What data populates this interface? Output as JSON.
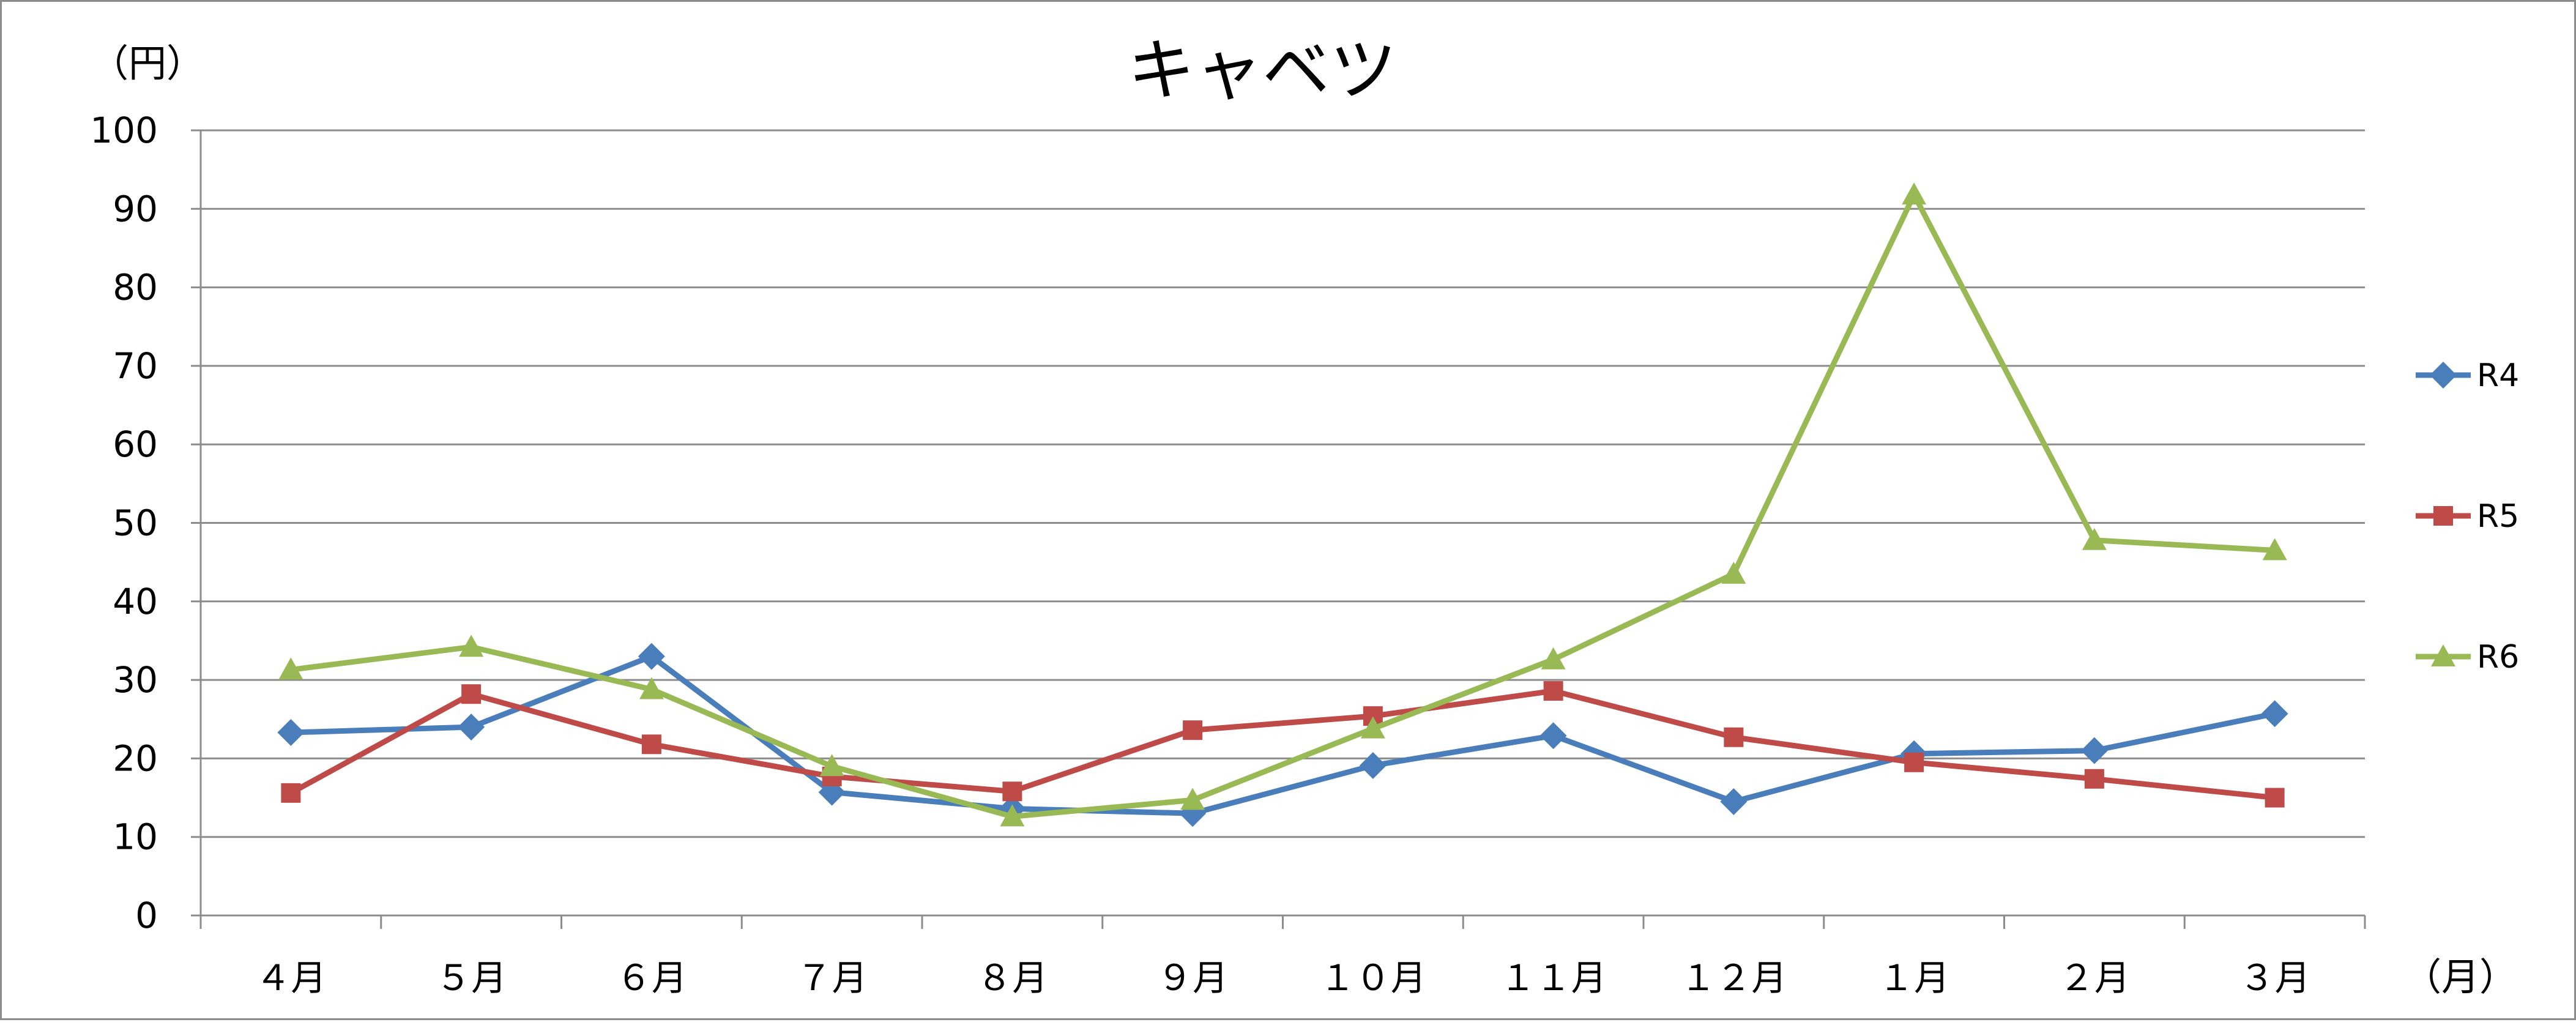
{
  "chart_data": {
    "type": "line",
    "title": "キャベツ",
    "ylabel": "（円）",
    "xlabel": "（月）",
    "ylim": [
      0,
      100
    ],
    "yticks": [
      "0",
      "10",
      "20",
      "30",
      "40",
      "50",
      "60",
      "70",
      "80",
      "90",
      "100"
    ],
    "categories": [
      "４月",
      "５月",
      "６月",
      "７月",
      "８月",
      "９月",
      "１０月",
      "１１月",
      "１２月",
      "１月",
      "２月",
      "３月"
    ],
    "grid": true,
    "legend_position": "right",
    "series": [
      {
        "name": "R4",
        "color": "#4a7ebb",
        "marker": "diamond",
        "values": [
          23.3,
          24.0,
          33.0,
          15.7,
          13.6,
          13.0,
          19.1,
          22.9,
          14.5,
          20.6,
          21.0,
          25.7
        ]
      },
      {
        "name": "R5",
        "color": "#be4b48",
        "marker": "square",
        "values": [
          15.6,
          28.2,
          21.8,
          17.7,
          15.8,
          23.6,
          25.4,
          28.6,
          22.7,
          19.5,
          17.4,
          15.0
        ]
      },
      {
        "name": "R6",
        "color": "#98b954",
        "marker": "triangle",
        "values": [
          31.3,
          34.2,
          28.8,
          19.0,
          12.6,
          14.7,
          23.8,
          32.6,
          43.5,
          91.8,
          47.8,
          46.5
        ]
      }
    ]
  }
}
